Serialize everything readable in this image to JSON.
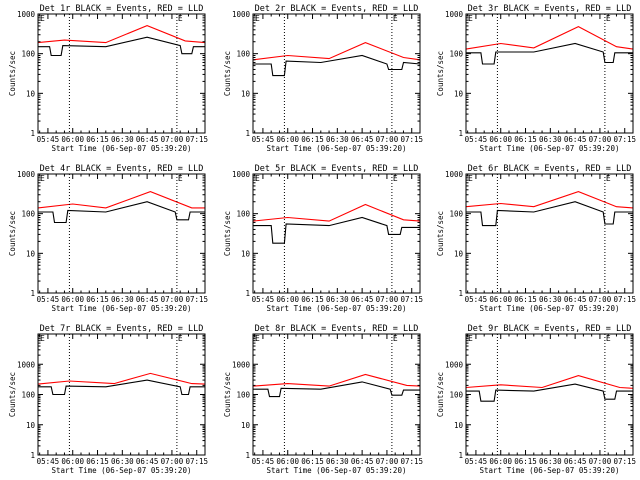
{
  "figure": {
    "x_tick_labels": [
      "05:45",
      "06:00",
      "06:15",
      "06:30",
      "06:45",
      "07:00",
      "07:15"
    ],
    "y_tick_labels": [
      "1",
      "10",
      "100",
      "1000"
    ],
    "ylabel": "Counts/sec",
    "xlabel": "Start Time (06-Sep-07 05:39:20)",
    "marker_letter": "E"
  },
  "colors": {
    "events": "#000000",
    "lld": "#ff0000",
    "axis": "#000000"
  },
  "chart_data": [
    {
      "type": "line",
      "title": "Det 1r BLACK = Events, RED = LLD",
      "x_range": [
        "05:39",
        "07:20"
      ],
      "ylim": [
        1,
        1000
      ],
      "yscale": "log",
      "grid": false,
      "vlines": [
        "05:58",
        "07:03"
      ],
      "series": [
        {
          "name": "Events",
          "x": [
            "05:39",
            "05:46",
            "05:47",
            "05:53",
            "05:54",
            "06:20",
            "06:45",
            "07:05",
            "07:06",
            "07:12",
            "07:13",
            "07:20"
          ],
          "values": [
            150,
            150,
            90,
            90,
            160,
            150,
            260,
            160,
            100,
            100,
            150,
            150
          ]
        },
        {
          "name": "LLD",
          "x": [
            "05:39",
            "05:55",
            "06:20",
            "06:45",
            "07:08",
            "07:20"
          ],
          "values": [
            190,
            220,
            190,
            510,
            210,
            190
          ]
        }
      ]
    },
    {
      "type": "line",
      "title": "Det 2r BLACK = Events, RED = LLD",
      "x_range": [
        "05:39",
        "07:20"
      ],
      "ylim": [
        1,
        1000
      ],
      "yscale": "log",
      "grid": false,
      "vlines": [
        "05:58",
        "07:03"
      ],
      "series": [
        {
          "name": "Events",
          "x": [
            "05:39",
            "05:50",
            "05:51",
            "05:58",
            "05:59",
            "06:20",
            "06:45",
            "07:00",
            "07:01",
            "07:09",
            "07:10",
            "07:20"
          ],
          "values": [
            55,
            55,
            28,
            28,
            65,
            60,
            90,
            55,
            40,
            40,
            60,
            55
          ]
        },
        {
          "name": "LLD",
          "x": [
            "05:39",
            "06:00",
            "06:25",
            "06:47",
            "07:10",
            "07:20"
          ],
          "values": [
            70,
            90,
            75,
            190,
            80,
            70
          ]
        }
      ]
    },
    {
      "type": "line",
      "title": "Det 3r BLACK = Events, RED = LLD",
      "x_range": [
        "05:39",
        "07:20"
      ],
      "ylim": [
        1,
        1000
      ],
      "yscale": "log",
      "grid": false,
      "vlines": [
        "05:58",
        "07:03"
      ],
      "series": [
        {
          "name": "Events",
          "x": [
            "05:39",
            "05:48",
            "05:49",
            "05:56",
            "05:57",
            "06:20",
            "06:45",
            "07:02",
            "07:03",
            "07:08",
            "07:09",
            "07:20"
          ],
          "values": [
            105,
            105,
            55,
            55,
            110,
            110,
            180,
            110,
            60,
            60,
            105,
            105
          ]
        },
        {
          "name": "LLD",
          "x": [
            "05:39",
            "06:00",
            "06:20",
            "06:47",
            "07:10",
            "07:20"
          ],
          "values": [
            130,
            180,
            140,
            480,
            150,
            130
          ]
        }
      ]
    },
    {
      "type": "line",
      "title": "Det 4r BLACK = Events, RED = LLD",
      "x_range": [
        "05:39",
        "07:20"
      ],
      "ylim": [
        1,
        1000
      ],
      "yscale": "log",
      "grid": false,
      "vlines": [
        "05:58",
        "07:03"
      ],
      "series": [
        {
          "name": "Events",
          "x": [
            "05:39",
            "05:48",
            "05:49",
            "05:56",
            "05:57",
            "06:20",
            "06:45",
            "07:02",
            "07:03",
            "07:10",
            "07:11",
            "07:20"
          ],
          "values": [
            110,
            110,
            60,
            60,
            120,
            110,
            200,
            110,
            70,
            70,
            110,
            110
          ]
        },
        {
          "name": "LLD",
          "x": [
            "05:39",
            "06:00",
            "06:20",
            "06:47",
            "07:12",
            "07:20"
          ],
          "values": [
            140,
            175,
            140,
            360,
            140,
            140
          ]
        }
      ]
    },
    {
      "type": "line",
      "title": "Det 5r BLACK = Events, RED = LLD",
      "x_range": [
        "05:39",
        "07:20"
      ],
      "ylim": [
        1,
        1000
      ],
      "yscale": "log",
      "grid": false,
      "vlines": [
        "05:58",
        "07:03"
      ],
      "series": [
        {
          "name": "Events",
          "x": [
            "05:39",
            "05:50",
            "05:51",
            "05:58",
            "05:59",
            "06:25",
            "06:45",
            "07:00",
            "07:01",
            "07:08",
            "07:09",
            "07:20"
          ],
          "values": [
            50,
            50,
            18,
            18,
            55,
            50,
            80,
            50,
            30,
            30,
            45,
            45
          ]
        },
        {
          "name": "LLD",
          "x": [
            "05:39",
            "06:00",
            "06:25",
            "06:47",
            "07:10",
            "07:20"
          ],
          "values": [
            65,
            80,
            65,
            170,
            70,
            65
          ]
        }
      ]
    },
    {
      "type": "line",
      "title": "Det 6r BLACK = Events, RED = LLD",
      "x_range": [
        "05:39",
        "07:20"
      ],
      "ylim": [
        1,
        1000
      ],
      "yscale": "log",
      "grid": false,
      "vlines": [
        "05:58",
        "07:03"
      ],
      "series": [
        {
          "name": "Events",
          "x": [
            "05:39",
            "05:48",
            "05:49",
            "05:57",
            "05:58",
            "06:20",
            "06:45",
            "07:02",
            "07:03",
            "07:08",
            "07:09",
            "07:20"
          ],
          "values": [
            110,
            110,
            50,
            50,
            120,
            110,
            200,
            110,
            55,
            55,
            110,
            110
          ]
        },
        {
          "name": "LLD",
          "x": [
            "05:39",
            "06:00",
            "06:20",
            "06:47",
            "07:10",
            "07:20"
          ],
          "values": [
            150,
            180,
            150,
            360,
            150,
            140
          ]
        }
      ]
    },
    {
      "type": "line",
      "title": "Det 7r BLACK = Events, RED = LLD",
      "x_range": [
        "05:39",
        "07:20"
      ],
      "ylim": [
        1,
        10000
      ],
      "yscale": "log",
      "grid": false,
      "vlines": [
        "05:58",
        "07:03"
      ],
      "series": [
        {
          "name": "Events",
          "x": [
            "05:39",
            "05:47",
            "05:48",
            "05:55",
            "05:56",
            "06:20",
            "06:45",
            "07:05",
            "07:06",
            "07:10",
            "07:11",
            "07:20"
          ],
          "values": [
            180,
            180,
            100,
            100,
            190,
            180,
            300,
            180,
            100,
            100,
            180,
            180
          ]
        },
        {
          "name": "LLD",
          "x": [
            "05:39",
            "05:58",
            "06:25",
            "06:47",
            "07:12",
            "07:20"
          ],
          "values": [
            220,
            280,
            230,
            500,
            230,
            220
          ]
        }
      ]
    },
    {
      "type": "line",
      "title": "Det 8r BLACK = Events, RED = LLD",
      "x_range": [
        "05:39",
        "07:20"
      ],
      "ylim": [
        1,
        10000
      ],
      "yscale": "log",
      "grid": false,
      "vlines": [
        "05:58",
        "07:03"
      ],
      "series": [
        {
          "name": "Events",
          "x": [
            "05:39",
            "05:48",
            "05:49",
            "05:55",
            "05:56",
            "06:20",
            "06:45",
            "07:02",
            "07:03",
            "07:09",
            "07:10",
            "07:20"
          ],
          "values": [
            150,
            150,
            85,
            85,
            160,
            150,
            260,
            150,
            95,
            95,
            140,
            140
          ]
        },
        {
          "name": "LLD",
          "x": [
            "05:39",
            "06:00",
            "06:25",
            "06:47",
            "07:12",
            "07:20"
          ],
          "values": [
            190,
            230,
            190,
            460,
            200,
            190
          ]
        }
      ]
    },
    {
      "type": "line",
      "title": "Det 9r BLACK = Events, RED = LLD",
      "x_range": [
        "05:39",
        "07:20"
      ],
      "ylim": [
        1,
        10000
      ],
      "yscale": "log",
      "grid": false,
      "vlines": [
        "05:58",
        "07:03"
      ],
      "series": [
        {
          "name": "Events",
          "x": [
            "05:39",
            "05:47",
            "05:48",
            "05:56",
            "05:57",
            "06:20",
            "06:45",
            "07:02",
            "07:03",
            "07:09",
            "07:10",
            "07:20"
          ],
          "values": [
            130,
            130,
            60,
            60,
            140,
            130,
            220,
            130,
            70,
            70,
            130,
            130
          ]
        },
        {
          "name": "LLD",
          "x": [
            "05:39",
            "06:00",
            "06:25",
            "06:47",
            "07:12",
            "07:20"
          ],
          "values": [
            170,
            210,
            170,
            420,
            170,
            160
          ]
        }
      ]
    }
  ]
}
